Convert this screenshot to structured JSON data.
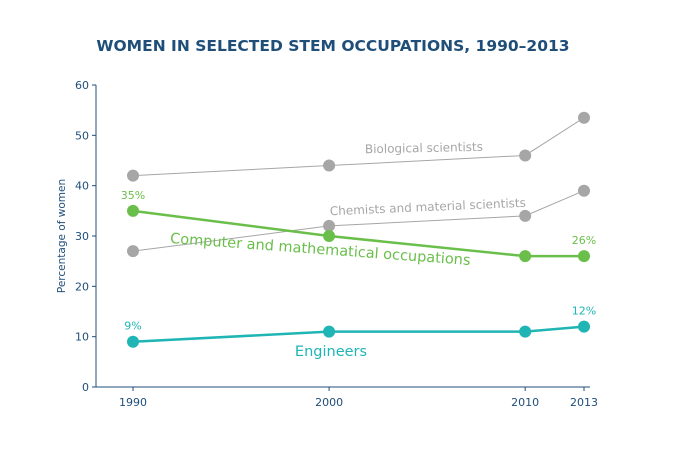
{
  "chart_data": {
    "type": "line",
    "title": "WOMEN IN SELECTED STEM OCCUPATIONS, 1990–2013",
    "xlabel": "",
    "ylabel": "Percentage of women",
    "x": [
      1990,
      2000,
      2010,
      2013
    ],
    "x_tick_labels": [
      "1990",
      "2000",
      "2010",
      "2013"
    ],
    "ylim": [
      0,
      60
    ],
    "y_ticks": [
      0,
      10,
      20,
      30,
      40,
      50,
      60
    ],
    "grid": false,
    "legend": "none (direct labels)",
    "series": [
      {
        "name": "Biological scientists",
        "color": "#a6a6a6",
        "values": [
          42,
          44,
          46,
          53.5
        ],
        "data_labels": [
          "",
          "",
          "",
          ""
        ]
      },
      {
        "name": "Chemists and material scientists",
        "color": "#a6a6a6",
        "values": [
          27,
          32,
          34,
          39
        ],
        "data_labels": [
          "",
          "",
          "",
          ""
        ]
      },
      {
        "name": "Computer and mathematical occupations",
        "color": "#6abf4b",
        "values": [
          35,
          30,
          26,
          26
        ],
        "data_labels": [
          "35%",
          "",
          "",
          "26%"
        ]
      },
      {
        "name": "Engineers",
        "color": "#1fb5b5",
        "values": [
          9,
          11,
          11,
          12
        ],
        "data_labels": [
          "9%",
          "",
          "",
          "12%"
        ]
      }
    ]
  }
}
